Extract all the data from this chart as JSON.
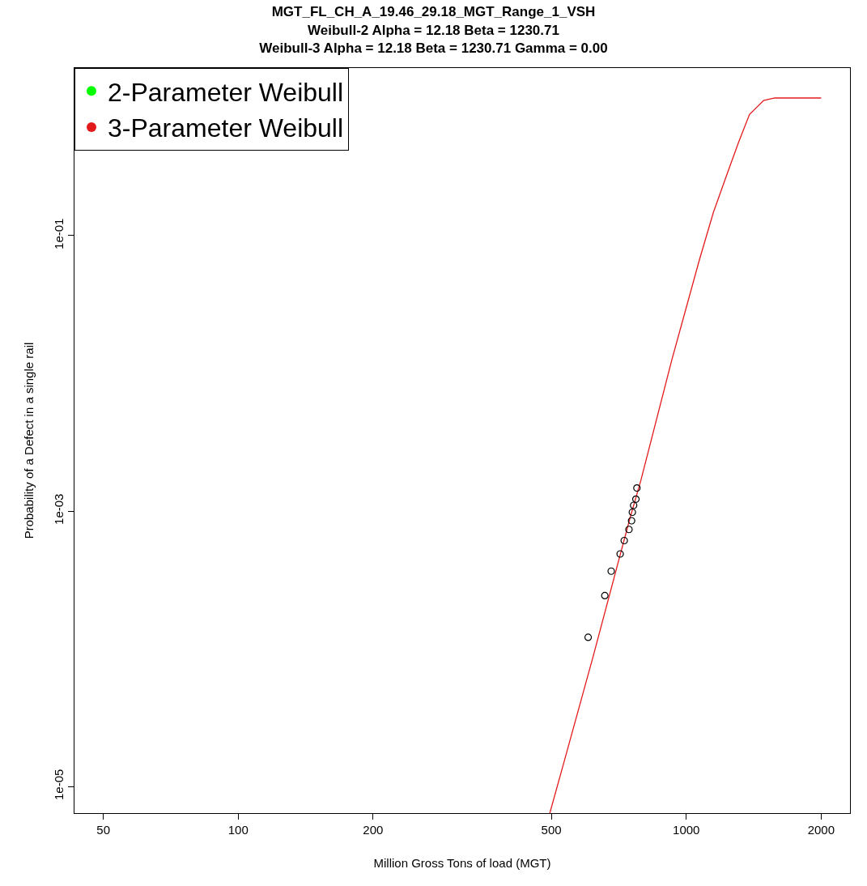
{
  "chart_data": {
    "type": "line",
    "title": "MGT_FL_CH_A_19.46_29.18_MGT_Range_1_VSH",
    "subtitle": "Weibull-2 Alpha = 12.18 Beta = 1230.71\nWeibull-3 Alpha = 12.18 Beta = 1230.71 Gamma = 0.00",
    "xlabel": "Million Gross Tons of load (MGT)",
    "ylabel": "Probability of a Defect in a single rail",
    "log": "xy",
    "xlim": [
      43.1,
      2320
    ],
    "ylim": [
      6.4e-06,
      1.65
    ],
    "xticks": [
      50,
      100,
      200,
      500,
      1000,
      2000
    ],
    "yticks": [
      {
        "value": 0.1,
        "label": "1e-01"
      },
      {
        "value": 0.001,
        "label": "1e-03"
      },
      {
        "value": 1e-05,
        "label": "1e-05"
      }
    ],
    "legend": "top left",
    "series": [
      {
        "name": "2-Parameter Weibull",
        "color": "#00ff00",
        "marker": "none"
      },
      {
        "name": "3-Parameter Weibull",
        "color": "#e31a1c",
        "marker": "none",
        "x": [
          496,
          534,
          620,
          748,
          792,
          928,
          1070,
          1150,
          1235,
          1308,
          1384,
          1488,
          1576,
          2000
        ],
        "values": [
          6.4e-06,
          1.52e-05,
          8.85e-05,
          0.000877,
          0.00167,
          0.01245,
          0.0668,
          0.148,
          0.284,
          0.475,
          0.759,
          0.96,
          1.0,
          1.0
        ]
      },
      {
        "color": "#000000",
        "type": "scatter",
        "marker": "circle",
        "x": [
          776,
          772,
          763,
          758,
          755,
          745,
          727,
          712,
          680,
          658,
          604
        ],
        "values": [
          0.00147,
          0.00122,
          0.0011,
          0.00098,
          0.00085,
          0.000735,
          0.00061,
          0.000488,
          0.000366,
          0.000243,
          0.000121
        ]
      }
    ]
  }
}
